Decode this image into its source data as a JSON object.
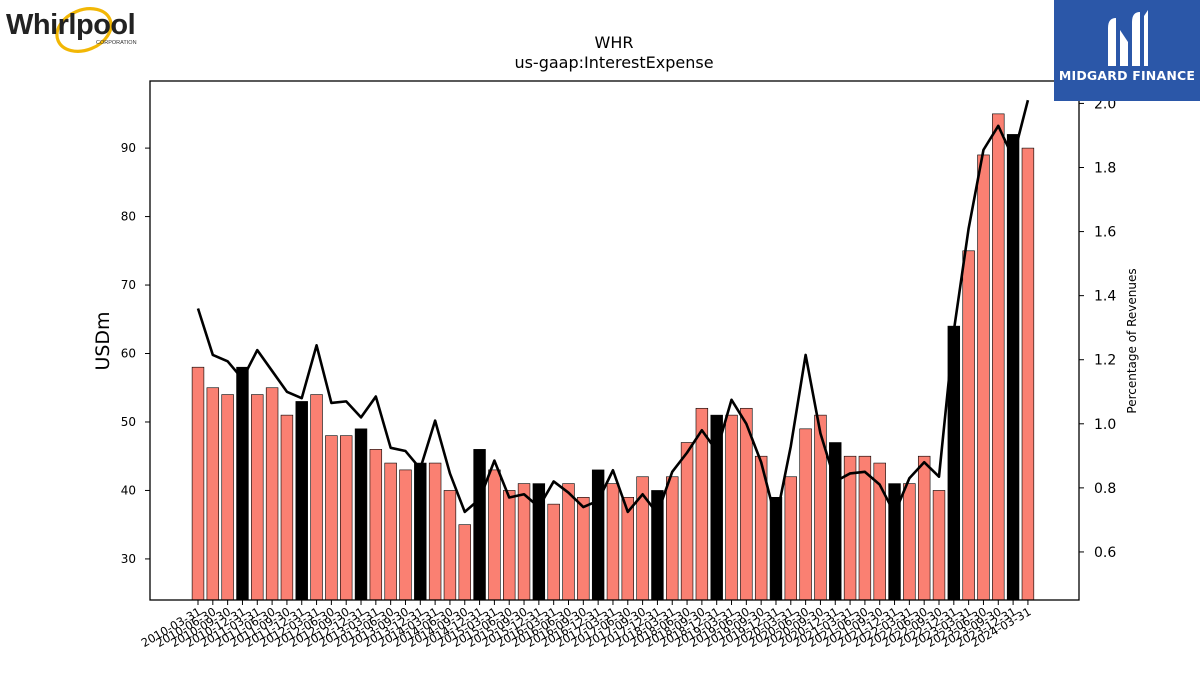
{
  "logos": {
    "left": {
      "name": "Whirlpool",
      "sub": "CORPORATION"
    },
    "right": {
      "name": "MIDGARD FINANCE"
    }
  },
  "colors": {
    "bar": "#fa8072",
    "bar_highlight": "#000000",
    "line": "#000000",
    "axis": "#000000"
  },
  "chart_data": {
    "type": "bar",
    "title": "WHR",
    "subtitle": "us-gaap:InterestExpense",
    "ylabel": "USDm",
    "y2label": "Percentage of Revenues",
    "ylim": [
      24,
      99.8
    ],
    "y2lim": [
      0.45,
      2.07
    ],
    "yticks": [
      30,
      40,
      50,
      60,
      70,
      80,
      90
    ],
    "y2ticks": [
      0.6,
      0.8,
      1.0,
      1.2,
      1.4,
      1.6,
      1.8,
      2.0
    ],
    "y2ticklabels": [
      "0.6",
      "0.8",
      "1.0",
      "1.2",
      "1.4",
      "1.6",
      "1.8",
      "2.0"
    ],
    "categories": [
      "2010-03-31",
      "2010-06-30",
      "2010-09-30",
      "2010-12-31",
      "2011-03-31",
      "2011-06-30",
      "2011-09-30",
      "2011-12-31",
      "2012-03-31",
      "2012-06-30",
      "2012-09-30",
      "2012-12-31",
      "2013-03-31",
      "2013-06-30",
      "2013-09-30",
      "2013-12-31",
      "2014-03-31",
      "2014-06-30",
      "2014-09-30",
      "2014-12-31",
      "2015-03-31",
      "2015-06-30",
      "2015-09-30",
      "2015-12-31",
      "2016-03-31",
      "2016-06-30",
      "2016-09-30",
      "2016-12-31",
      "2017-03-31",
      "2017-06-30",
      "2017-09-30",
      "2017-12-31",
      "2018-03-31",
      "2018-06-30",
      "2018-09-30",
      "2018-12-31",
      "2019-03-31",
      "2019-06-30",
      "2019-09-30",
      "2019-12-31",
      "2020-03-31",
      "2020-06-30",
      "2020-09-30",
      "2020-12-31",
      "2021-03-31",
      "2021-06-30",
      "2021-09-30",
      "2021-12-31",
      "2022-03-31",
      "2022-06-30",
      "2022-09-30",
      "2022-12-31",
      "2023-03-31",
      "2023-06-30",
      "2023-09-30",
      "2023-12-31",
      "2024-03-31"
    ],
    "series": [
      {
        "type": "bar",
        "values": [
          58,
          55,
          54,
          58,
          54,
          55,
          51,
          53,
          54,
          48,
          48,
          49,
          46,
          44,
          43,
          44,
          44,
          40,
          35,
          46,
          43,
          40,
          41,
          41,
          38,
          41,
          39,
          43,
          41,
          39,
          42,
          40,
          42,
          47,
          52,
          51,
          51,
          52,
          45,
          39,
          42,
          49,
          51,
          47,
          45,
          45,
          44,
          41,
          41,
          45,
          40,
          64,
          75,
          89,
          95,
          92,
          90
        ],
        "highlight": [
          false,
          false,
          false,
          true,
          false,
          false,
          false,
          true,
          false,
          false,
          false,
          true,
          false,
          false,
          false,
          true,
          false,
          false,
          false,
          true,
          false,
          false,
          false,
          true,
          false,
          false,
          false,
          true,
          false,
          false,
          false,
          true,
          false,
          false,
          false,
          true,
          false,
          false,
          false,
          true,
          false,
          false,
          false,
          true,
          false,
          false,
          false,
          true,
          false,
          false,
          false,
          true,
          false,
          false,
          false,
          true,
          false
        ]
      },
      {
        "type": "line",
        "axis": "right",
        "values": [
          1.36,
          1.215,
          1.195,
          1.14,
          1.23,
          1.165,
          1.1,
          1.08,
          1.245,
          1.065,
          1.07,
          1.02,
          1.085,
          0.925,
          0.915,
          0.86,
          1.01,
          0.845,
          0.725,
          0.765,
          0.885,
          0.77,
          0.78,
          0.74,
          0.82,
          0.785,
          0.74,
          0.76,
          0.855,
          0.725,
          0.78,
          0.72,
          0.85,
          0.91,
          0.98,
          0.915,
          1.075,
          1.0,
          0.88,
          0.7,
          0.93,
          1.215,
          0.97,
          0.82,
          0.845,
          0.85,
          0.81,
          0.72,
          0.83,
          0.88,
          0.835,
          1.29,
          1.61,
          1.855,
          1.93,
          1.83,
          2.01
        ]
      }
    ]
  }
}
